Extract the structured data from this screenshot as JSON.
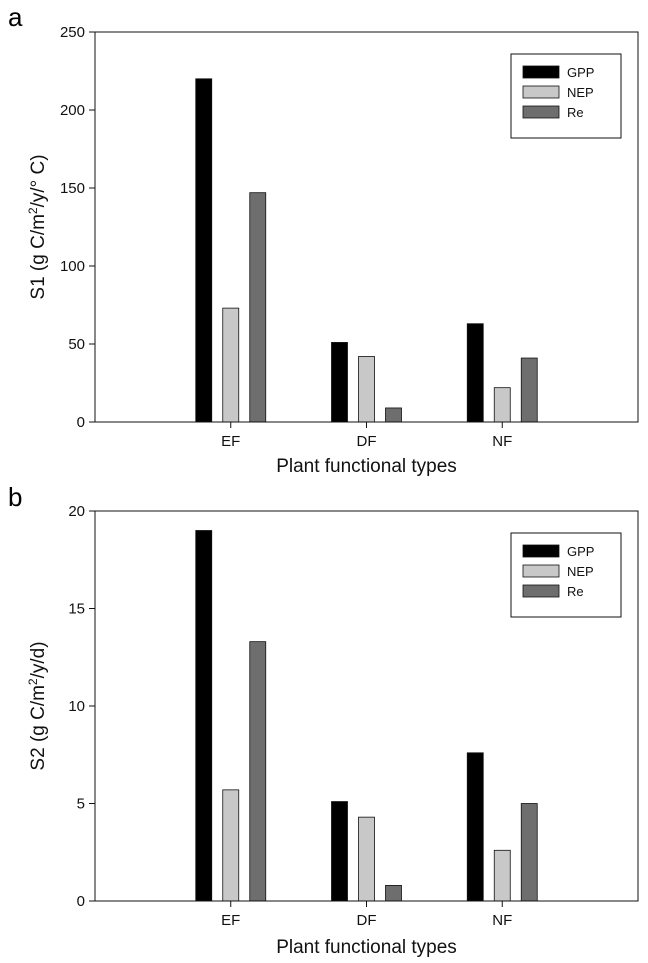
{
  "chart_data": [
    {
      "type": "bar",
      "panel_label": "a",
      "categories": [
        "EF",
        "DF",
        "NF"
      ],
      "series": [
        {
          "name": "GPP",
          "color": "#000000",
          "values": [
            220,
            51,
            63
          ]
        },
        {
          "name": "NEP",
          "color": "#c8c8c8",
          "values": [
            73,
            42,
            22
          ]
        },
        {
          "name": "Re",
          "color": "#6e6e6e",
          "values": [
            147,
            9,
            41
          ]
        }
      ],
      "xlabel": "Plant functional types",
      "ylabel": {
        "before": "S1 (g C/m",
        "sup": "2",
        "after": "/y/° C)"
      },
      "ylim": [
        0,
        250
      ],
      "yticks": [
        "0",
        "50",
        "100",
        "150",
        "200",
        "250"
      ],
      "legend_position": "top-right",
      "grid": false
    },
    {
      "type": "bar",
      "panel_label": "b",
      "categories": [
        "EF",
        "DF",
        "NF"
      ],
      "series": [
        {
          "name": "GPP",
          "color": "#000000",
          "values": [
            19.0,
            5.1,
            7.6
          ]
        },
        {
          "name": "NEP",
          "color": "#c8c8c8",
          "values": [
            5.7,
            4.3,
            2.6
          ]
        },
        {
          "name": "Re",
          "color": "#6e6e6e",
          "values": [
            13.3,
            0.8,
            5.0
          ]
        }
      ],
      "xlabel": "Plant functional types",
      "ylabel": {
        "before": "S2 (g C/m",
        "sup": "2",
        "after": "/y/d)"
      },
      "ylim": [
        0,
        20
      ],
      "yticks": [
        "0",
        "5",
        "10",
        "15",
        "20"
      ],
      "legend_position": "top-right",
      "grid": false
    }
  ]
}
